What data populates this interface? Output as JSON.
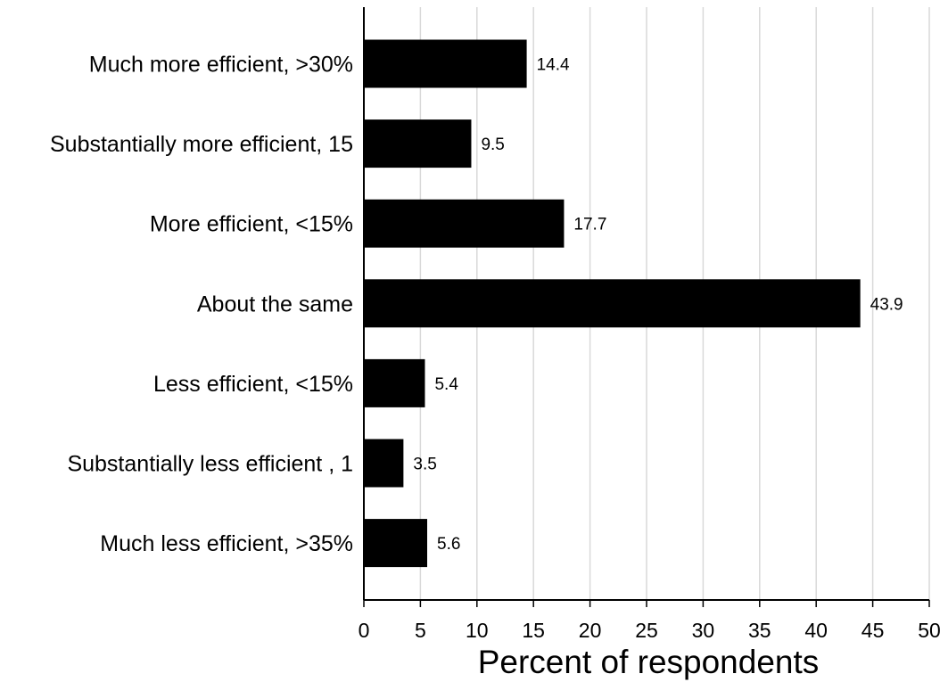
{
  "chart_data": {
    "type": "bar",
    "orientation": "horizontal",
    "categories": [
      "Much more efficient, >30%",
      "Substantially more efficient, 15",
      "More efficient, <15%",
      "About the same",
      "Less efficient, <15%",
      "Substantially less efficient , 1",
      "Much less efficient, >35%"
    ],
    "values": [
      14.4,
      9.5,
      17.7,
      43.9,
      5.4,
      3.5,
      5.6
    ],
    "data_labels": [
      "14.4",
      "9.5",
      "17.7",
      "43.9",
      "5.4",
      "3.5",
      "5.6"
    ],
    "title": "",
    "xlabel": "Percent of respondents",
    "ylabel": "",
    "xlim": [
      0,
      50
    ],
    "xticks": [
      0,
      5,
      10,
      15,
      20,
      25,
      30,
      35,
      40,
      45,
      50
    ],
    "grid": "vertical",
    "bar_color": "#000000",
    "grid_color": "#d9d9d9"
  }
}
